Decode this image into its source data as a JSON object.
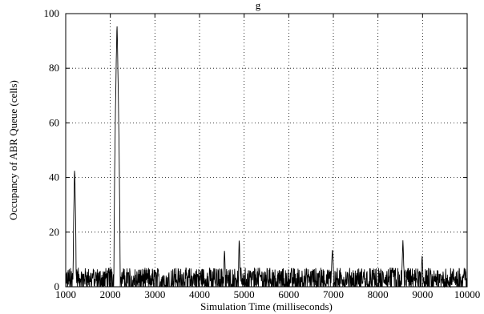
{
  "chart_data": {
    "type": "line",
    "title": "g",
    "xlabel": "Simulation Time (milliseconds)",
    "ylabel": "Occupancy of ABR Queue (cells)",
    "xlim": [
      1000,
      10000
    ],
    "ylim": [
      0,
      100
    ],
    "xticks": [
      1000,
      2000,
      3000,
      4000,
      5000,
      6000,
      7000,
      8000,
      9000,
      10000
    ],
    "yticks": [
      0,
      20,
      40,
      60,
      80,
      100
    ],
    "grid": true,
    "noise_band": [
      0,
      7
    ],
    "series": [
      {
        "color": "#000000",
        "peaks": [
          {
            "x": 1200,
            "y": 44,
            "width_ms": 70
          },
          {
            "x": 2150,
            "y": 97,
            "width_ms": 140
          },
          {
            "x": 4560,
            "y": 14,
            "width_ms": 40
          },
          {
            "x": 4890,
            "y": 18,
            "width_ms": 40
          },
          {
            "x": 6980,
            "y": 14,
            "width_ms": 60
          },
          {
            "x": 8560,
            "y": 17,
            "width_ms": 50
          },
          {
            "x": 8990,
            "y": 12,
            "width_ms": 40
          }
        ]
      }
    ]
  }
}
